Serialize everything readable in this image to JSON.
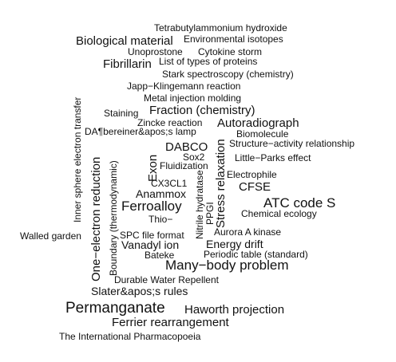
{
  "words": [
    "Tetrabutylammonium hydroxide",
    "Biological material",
    "Environmental isotopes",
    "Unoprostone",
    "Cytokine storm",
    "Fibrillarin",
    "List of types of proteins",
    "Stark spectroscopy (chemistry)",
    "Japp−Klingemann reaction",
    "Metal injection molding",
    "Staining",
    "Fraction (chemistry)",
    "Zincke reaction",
    "Autoradiograph",
    "DA¶bereiner&apos;s lamp",
    "Biomolecule",
    "DABCO",
    "Structure−activity relationship",
    "Sox2",
    "Little−Parks effect",
    "Fluidization",
    "Electrophile",
    "CX3CL1",
    "CFSE",
    "Anammox",
    "ATC code S",
    "Ferroalloy",
    "Chemical ecology",
    "Thio−",
    "Walled garden",
    "SPC file format",
    "Aurora A kinase",
    "Vanadyl ion",
    "Energy drift",
    "Bateke",
    "Periodic table (standard)",
    "Many−body problem",
    "Durable Water Repellent",
    "Slater&apos;s rules",
    "Permanganate",
    "Haworth projection",
    "Ferrier rearrangement",
    "The International Pharmacopoeia",
    "Inner sphere electron transfer",
    "One−electron reduction",
    "Boundary (thermodynamic)",
    "Exon",
    "Nitrile hydratase",
    "PPGI",
    "Stress relaxation"
  ]
}
